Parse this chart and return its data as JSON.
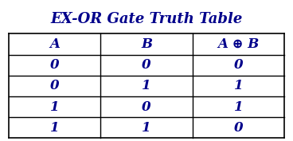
{
  "title": "EX-OR Gate Truth Table",
  "title_color": "#00008B",
  "title_fontsize": 13,
  "header": [
    "A",
    "B",
    "A ⊕ B"
  ],
  "rows": [
    [
      "0",
      "0",
      "0"
    ],
    [
      "0",
      "1",
      "1"
    ],
    [
      "1",
      "0",
      "1"
    ],
    [
      "1",
      "1",
      "0"
    ]
  ],
  "text_color": "#00008B",
  "border_color": "#000000",
  "bg_color": "#FFFFFF",
  "cell_fontsize": 12,
  "header_fontsize": 12,
  "fig_width": 3.68,
  "fig_height": 1.77,
  "dpi": 100
}
